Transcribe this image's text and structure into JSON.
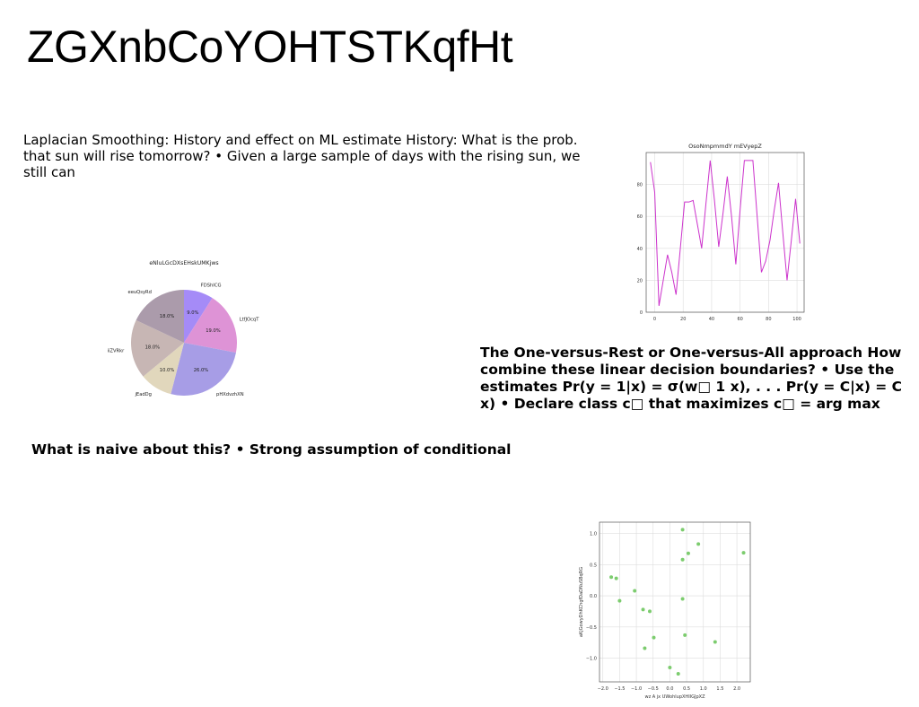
{
  "document": {
    "title": "ZGXnbCoYOHTSTKqfHt",
    "paragraphs": {
      "laplacian": "Laplacian Smoothing: History and effect on ML estimate History: What is the prob. that sun will rise tomorrow? • Given a large sample of days with the rising sun, we still can",
      "ovr": "The One-versus-Rest or One-versus-All approach How combine these linear decision boundaries? • Use the estimates Pr(y = 1|x) = σ(w□ 1 x), . . . Pr(y = C|x) = C x) • Declare class c□ that maximizes c□ = arg max",
      "naive": "What is naive about this? • Strong assumption of conditional"
    }
  },
  "chart_data": [
    {
      "type": "pie",
      "title": "eNluLGcDXsEHskUMKjws",
      "labels": [
        "FDShICG",
        "LtfJOcqT",
        "pHXdvzhXN",
        "jEadDg",
        "DiiZVRkr",
        "eeuQsyRd"
      ],
      "values": [
        9.0,
        19.0,
        26.0,
        10.0,
        18.0,
        18.0
      ],
      "pct_labels": [
        "9.0%",
        "19.0%",
        "26.0%",
        "10.0%",
        "18.0%",
        "18.0%"
      ],
      "colors": [
        "#a58bf7",
        "#de93d6",
        "#a79de6",
        "#e1d7bc",
        "#c7b6b4",
        "#ab9bab"
      ]
    },
    {
      "type": "line",
      "title": "OsoNmpmmdY mEVyepZ",
      "color": "#cc33cc",
      "x": [
        -3,
        0,
        3,
        6,
        9,
        12,
        15,
        18,
        21,
        24,
        27,
        30,
        33,
        36,
        39,
        42,
        45,
        48,
        51,
        54,
        57,
        60,
        63,
        66,
        69,
        72,
        75,
        78,
        81,
        84,
        87,
        90,
        93,
        96,
        99,
        102
      ],
      "y": [
        94,
        75,
        4,
        20,
        36,
        25,
        11,
        40,
        69,
        69,
        70,
        55,
        40,
        68,
        95,
        70,
        41,
        62,
        85,
        60,
        30,
        64,
        95,
        95,
        95,
        60,
        25,
        32,
        45,
        64,
        81,
        50,
        20,
        45,
        71,
        43
      ],
      "xlim": [
        -6,
        105
      ],
      "ylim": [
        0,
        100
      ],
      "xticks": [
        0,
        20,
        40,
        60,
        80,
        100
      ],
      "yticks": [
        0,
        20,
        40,
        60,
        80
      ],
      "grid": true
    },
    {
      "type": "scatter",
      "title": "",
      "xlabel": "wz A jx UWohlupXHIIGJpXZ",
      "ylabel": "aKjGowyDhKChgfDaDNuSBqRG",
      "color": "#7ccc6e",
      "points": [
        [
          -1.75,
          0.3
        ],
        [
          -1.6,
          0.28
        ],
        [
          -1.5,
          -0.08
        ],
        [
          -1.05,
          0.08
        ],
        [
          -0.8,
          -0.22
        ],
        [
          -0.6,
          -0.25
        ],
        [
          -0.48,
          -0.67
        ],
        [
          -0.75,
          -0.84
        ],
        [
          0.0,
          -1.15
        ],
        [
          0.25,
          -1.25
        ],
        [
          0.38,
          1.06
        ],
        [
          0.38,
          0.58
        ],
        [
          0.38,
          -0.05
        ],
        [
          0.45,
          -0.63
        ],
        [
          0.55,
          0.68
        ],
        [
          0.85,
          0.83
        ],
        [
          1.35,
          -0.74
        ],
        [
          2.2,
          0.69
        ]
      ],
      "xlim": [
        -2.1,
        2.4
      ],
      "ylim": [
        -1.38,
        1.18
      ],
      "xticks": [
        -2.0,
        -1.5,
        -1.0,
        -0.5,
        0.0,
        0.5,
        1.0,
        1.5,
        2.0
      ],
      "xtick_labels": [
        "−2.0",
        "−1.5",
        "−1.0",
        "−0.5",
        "0.0",
        "0.5",
        "1.0",
        "1.5",
        "2.0"
      ],
      "yticks": [
        -1.0,
        -0.5,
        0.0,
        0.5,
        1.0
      ],
      "ytick_labels": [
        "−1.0",
        "−0.5",
        "0.0",
        "0.5",
        "1.0"
      ],
      "grid": true
    }
  ]
}
